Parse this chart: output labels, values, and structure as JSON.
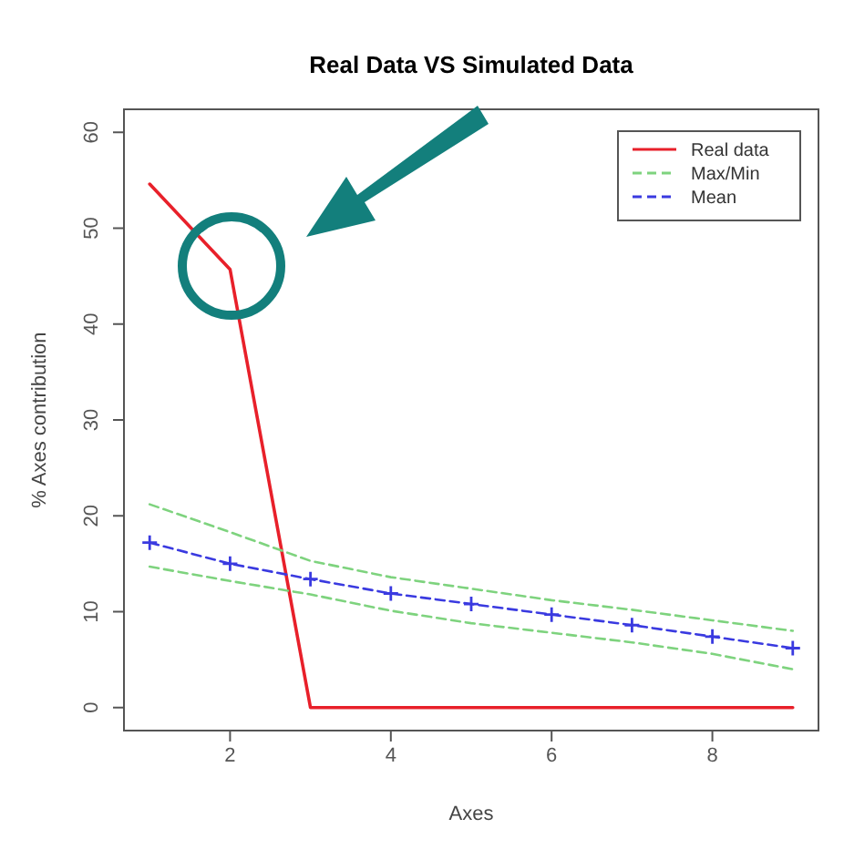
{
  "chart_data": {
    "type": "line",
    "title": "Real Data VS Simulated Data",
    "xlabel": "Axes",
    "ylabel": "% Axes contribution",
    "x": [
      1,
      2,
      3,
      4,
      5,
      6,
      7,
      8,
      9
    ],
    "xlim": [
      0.68,
      9.32
    ],
    "xticks": [
      2,
      4,
      6,
      8
    ],
    "ylim": [
      -2.4,
      62.4
    ],
    "yticks": [
      0,
      10,
      20,
      30,
      40,
      50,
      60
    ],
    "legend": "top right",
    "grid": false,
    "series": [
      {
        "name": "Real data",
        "color": "#e8202a",
        "line_style": "solid",
        "marker": "none",
        "values": [
          54.6,
          45.7,
          0,
          0,
          0,
          0,
          0,
          0,
          0
        ]
      },
      {
        "name": "Max/Min",
        "color": "#7ed37e",
        "line_style": "dashed",
        "marker": "none",
        "values": [
          21.2,
          18.3,
          15.3,
          13.6,
          12.4,
          11.2,
          10.2,
          9.1,
          8.0
        ]
      },
      {
        "color": "#7ed37e",
        "line_style": "dashed",
        "marker": "none",
        "values": [
          14.7,
          13.2,
          11.8,
          10.1,
          8.8,
          7.8,
          6.8,
          5.6,
          4.0
        ]
      },
      {
        "name": "Mean",
        "color": "#3a3ae0",
        "line_style": "dashed",
        "marker": "cross",
        "values": [
          17.2,
          15.0,
          13.4,
          11.9,
          10.8,
          9.7,
          8.6,
          7.4,
          6.2
        ]
      }
    ]
  }
}
